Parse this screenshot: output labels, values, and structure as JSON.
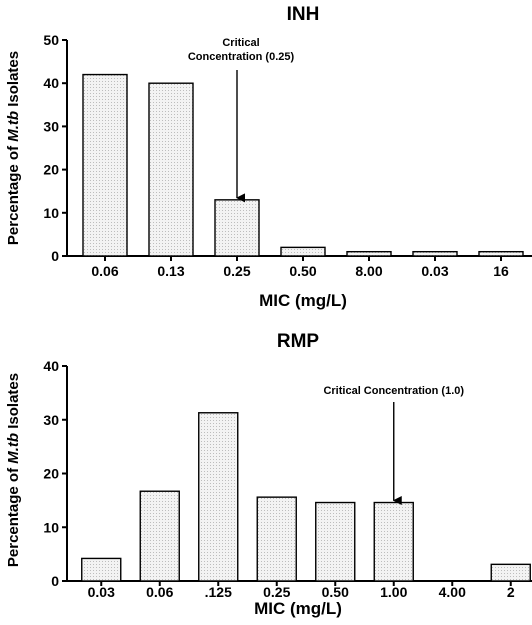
{
  "chart_data": [
    {
      "type": "bar",
      "title": "INH",
      "xlabel": "MIC (mg/L)",
      "ylabel_prefix": "Percentage of ",
      "ylabel_italic": "M.tb",
      "ylabel_suffix": " Isolates",
      "categories": [
        "0.06",
        "0.13",
        "0.25",
        "0.50",
        "8.00",
        "0.03",
        "16"
      ],
      "values": [
        42,
        40,
        13,
        2,
        1,
        1,
        1
      ],
      "ylim": [
        0,
        50
      ],
      "yticks": [
        0,
        10,
        20,
        30,
        40,
        50
      ],
      "annotation": {
        "lines": [
          "Critical",
          "Concentration (0.25)"
        ],
        "category_index": 2,
        "value": 13
      },
      "grid": false
    },
    {
      "type": "bar",
      "title": "RMP",
      "xlabel": "MIC (mg/L)",
      "ylabel_prefix": "Percentage of ",
      "ylabel_italic": "M.tb",
      "ylabel_suffix": " Isolates",
      "categories": [
        "0.03",
        "0.06",
        ".125",
        "0.25",
        "0.50",
        "1.00",
        "4.00",
        "2"
      ],
      "values": [
        4.2,
        16.7,
        31.3,
        15.6,
        14.6,
        14.6,
        0,
        3.1
      ],
      "ylim": [
        0,
        40
      ],
      "yticks": [
        0,
        10,
        20,
        30,
        40
      ],
      "annotation": {
        "lines": [
          "Critical Concentration (1.0)"
        ],
        "category_index": 5,
        "value": 14.6
      },
      "grid": false
    }
  ]
}
